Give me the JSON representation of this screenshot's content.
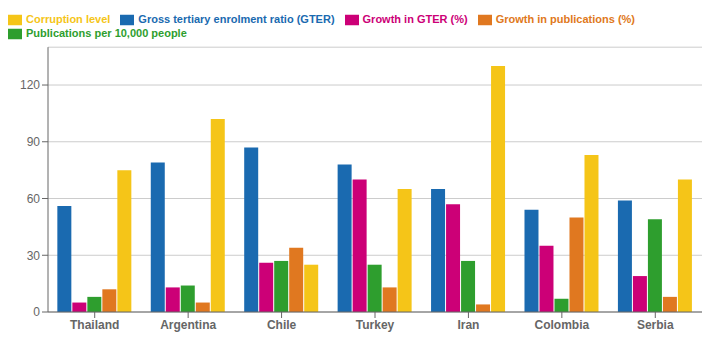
{
  "chart_data": {
    "type": "bar",
    "categories": [
      "Thailand",
      "Argentina",
      "Chile",
      "Turkey",
      "Iran",
      "Colombia",
      "Serbia"
    ],
    "series": [
      {
        "name": "Gross tertiary enrolment ratio (GTER)",
        "color": "#1a6ab0",
        "values": [
          56,
          79,
          87,
          78,
          65,
          54,
          59
        ]
      },
      {
        "name": "Growth in GTER (%)",
        "color": "#cc0077",
        "values": [
          5,
          13,
          26,
          70,
          57,
          35,
          19
        ]
      },
      {
        "name": "Publications per 10,000 people",
        "color": "#2e9e2e",
        "values": [
          8,
          14,
          27,
          25,
          27,
          7,
          49
        ]
      },
      {
        "name": "Growth in publications (%)",
        "color": "#e07820",
        "values": [
          12,
          5,
          34,
          13,
          4,
          50,
          8
        ]
      },
      {
        "name": "Corruption level",
        "color": "#f5c518",
        "values": [
          75,
          102,
          25,
          65,
          130,
          83,
          70
        ]
      }
    ],
    "ylim": [
      0,
      140
    ],
    "yticks": [
      0,
      30,
      60,
      90,
      120
    ],
    "grid": true,
    "legend": "upper left"
  }
}
